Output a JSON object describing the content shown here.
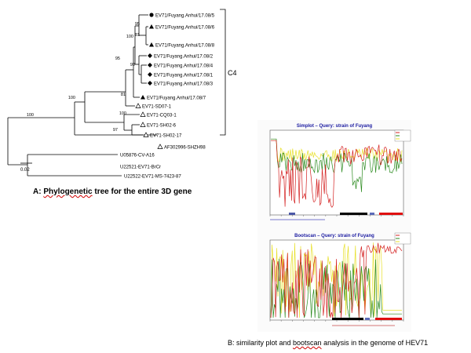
{
  "tree": {
    "taxa": [
      {
        "label": "EV71/Fuyang.Anhui/17.08/5",
        "marker": "circle"
      },
      {
        "label": "EV71/Fuyang.Anhui/17.08/6",
        "marker": "triangle"
      },
      {
        "label": "EV71/Fuyang.Anhui/17.08/8",
        "marker": "triangle"
      },
      {
        "label": "EV71/Fuyang.Anhui/17.08/2",
        "marker": "diamond"
      },
      {
        "label": "EV71/Fuyang.Anhui/17.08/4",
        "marker": "diamond"
      },
      {
        "label": "EV71/Fuyang.Anhui/17.08/1",
        "marker": "diamond"
      },
      {
        "label": "EV71/Fuyang.Anhui/17.08/3",
        "marker": "diamond"
      },
      {
        "label": "EV71/Fuyang.Anhui/17.08/7",
        "marker": "triangle"
      },
      {
        "label": "EV71-SD07-1",
        "marker": "open-triangle"
      },
      {
        "label": "EV71-CQ03-1",
        "marker": "open-triangle"
      },
      {
        "label": "EV71-SH02-6",
        "marker": "open-triangle"
      },
      {
        "label": "EV71-SH02-17",
        "marker": "open-triangle"
      },
      {
        "label": "AF302996-SHZH98",
        "marker": "open-triangle"
      },
      {
        "label": "U05876-CV-A16",
        "marker": "none"
      },
      {
        "label": "U22521-EV71-BrCr",
        "marker": "none"
      },
      {
        "label": "U22522-EV71-MS-7423-87",
        "marker": "none"
      }
    ],
    "bootstrap_values": [
      "95",
      "81",
      "100",
      "99",
      "95",
      "81",
      "100",
      "100",
      "100",
      "97"
    ],
    "cluster_label": "C4",
    "scale_label": "0.02"
  },
  "caption_a": {
    "prefix": "A: ",
    "word": "Phylogenetic",
    "rest": " tree for the entire 3D gene"
  },
  "simplot": {
    "title": "Simplot – Query: strain of Fuyang",
    "series_colors": [
      "#d42020",
      "#2a8a1e",
      "#e8e02a"
    ]
  },
  "bootscan": {
    "title": "Bootscan – Query: strain of Fuyang",
    "series_colors": [
      "#d42020",
      "#2a8a1e",
      "#e8e02a"
    ]
  },
  "caption_b": {
    "prefix": "B: similarity plot and ",
    "word": "bootscan",
    "rest": " analysis in the genome of HEV71"
  },
  "colors": {
    "panel_title": "#1a1aa0",
    "frame": "#5a5a5a"
  }
}
